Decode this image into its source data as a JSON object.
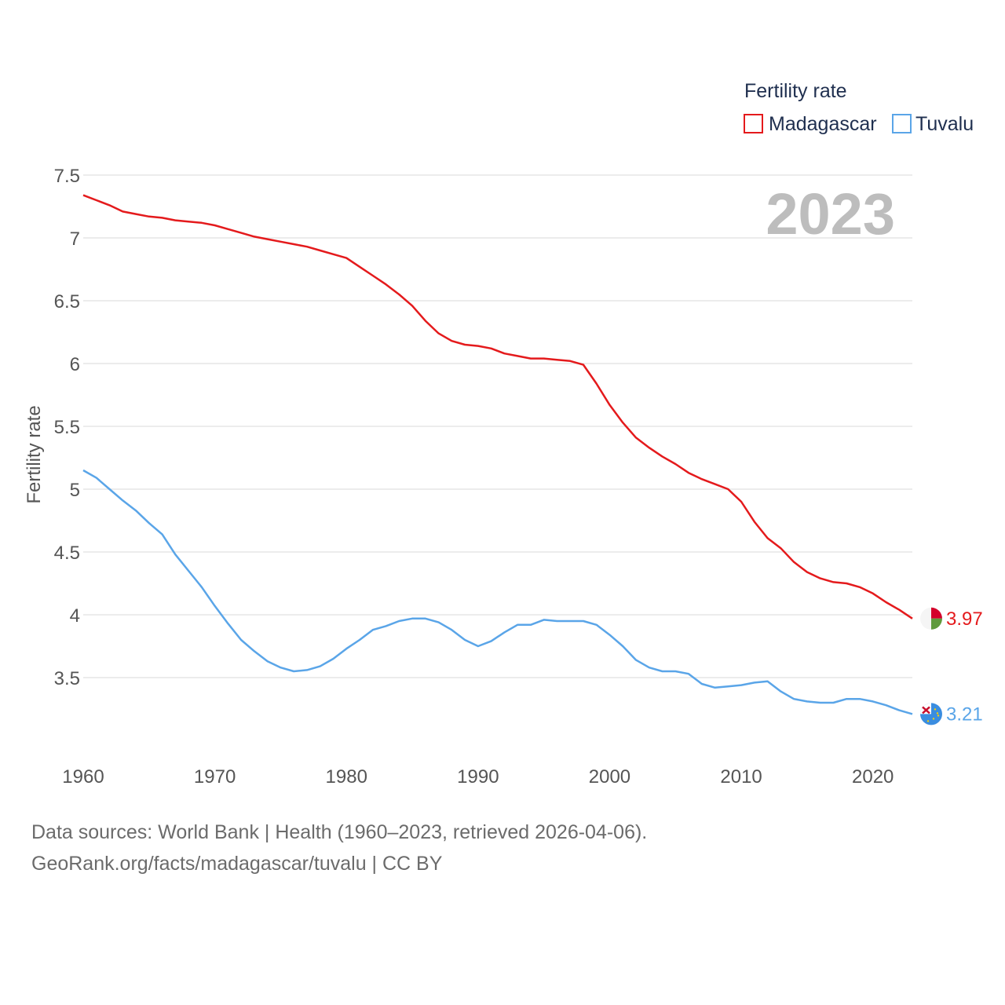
{
  "chart_data": {
    "type": "line",
    "title": "Fertility rate",
    "year_label": "2023",
    "ylabel": "Fertility rate",
    "xlabel": "",
    "xlim": [
      1960,
      2023
    ],
    "ylim": [
      3.0,
      7.5
    ],
    "yticks": [
      "3.5",
      "4",
      "4.5",
      "5",
      "5.5",
      "6",
      "6.5",
      "7",
      "7.5"
    ],
    "xticks": [
      "1960",
      "1970",
      "1980",
      "1990",
      "2000",
      "2010",
      "2020"
    ],
    "x": [
      1960,
      1961,
      1962,
      1963,
      1964,
      1965,
      1966,
      1967,
      1968,
      1969,
      1970,
      1971,
      1972,
      1973,
      1974,
      1975,
      1976,
      1977,
      1978,
      1979,
      1980,
      1981,
      1982,
      1983,
      1984,
      1985,
      1986,
      1987,
      1988,
      1989,
      1990,
      1991,
      1992,
      1993,
      1994,
      1995,
      1996,
      1997,
      1998,
      1999,
      2000,
      2001,
      2002,
      2003,
      2004,
      2005,
      2006,
      2007,
      2008,
      2009,
      2010,
      2011,
      2012,
      2013,
      2014,
      2015,
      2016,
      2017,
      2018,
      2019,
      2020,
      2021,
      2022,
      2023
    ],
    "series": [
      {
        "name": "Madagascar",
        "color": "#e41a1c",
        "end_label": "3.97",
        "values": [
          7.34,
          7.3,
          7.26,
          7.21,
          7.19,
          7.17,
          7.16,
          7.14,
          7.13,
          7.12,
          7.1,
          7.07,
          7.04,
          7.01,
          6.99,
          6.97,
          6.95,
          6.93,
          6.9,
          6.87,
          6.84,
          6.77,
          6.7,
          6.63,
          6.55,
          6.46,
          6.34,
          6.24,
          6.18,
          6.15,
          6.14,
          6.12,
          6.08,
          6.06,
          6.04,
          6.04,
          6.03,
          6.02,
          5.99,
          5.84,
          5.67,
          5.53,
          5.41,
          5.33,
          5.26,
          5.2,
          5.13,
          5.08,
          5.04,
          5.0,
          4.9,
          4.74,
          4.61,
          4.53,
          4.42,
          4.34,
          4.29,
          4.26,
          4.25,
          4.22,
          4.17,
          4.1,
          4.04,
          3.97
        ]
      },
      {
        "name": "Tuvalu",
        "color": "#5aa5e8",
        "end_label": "3.21",
        "values": [
          5.15,
          5.09,
          5.0,
          4.91,
          4.83,
          4.73,
          4.64,
          4.48,
          4.35,
          4.22,
          4.07,
          3.93,
          3.8,
          3.71,
          3.63,
          3.58,
          3.55,
          3.56,
          3.59,
          3.65,
          3.73,
          3.8,
          3.88,
          3.91,
          3.95,
          3.97,
          3.97,
          3.94,
          3.88,
          3.8,
          3.75,
          3.79,
          3.86,
          3.92,
          3.92,
          3.96,
          3.95,
          3.95,
          3.95,
          3.92,
          3.84,
          3.75,
          3.64,
          3.58,
          3.55,
          3.55,
          3.53,
          3.45,
          3.42,
          3.43,
          3.44,
          3.46,
          3.47,
          3.39,
          3.33,
          3.31,
          3.3,
          3.3,
          3.33,
          3.33,
          3.31,
          3.28,
          3.24,
          3.21
        ]
      }
    ],
    "legend_position": "top-right",
    "grid": true
  },
  "source": {
    "line1": "Data sources: World Bank | Health (1960–2023, retrieved 2026-04-06).",
    "line2": "GeoRank.org/facts/madagascar/tuvalu | CC BY"
  }
}
